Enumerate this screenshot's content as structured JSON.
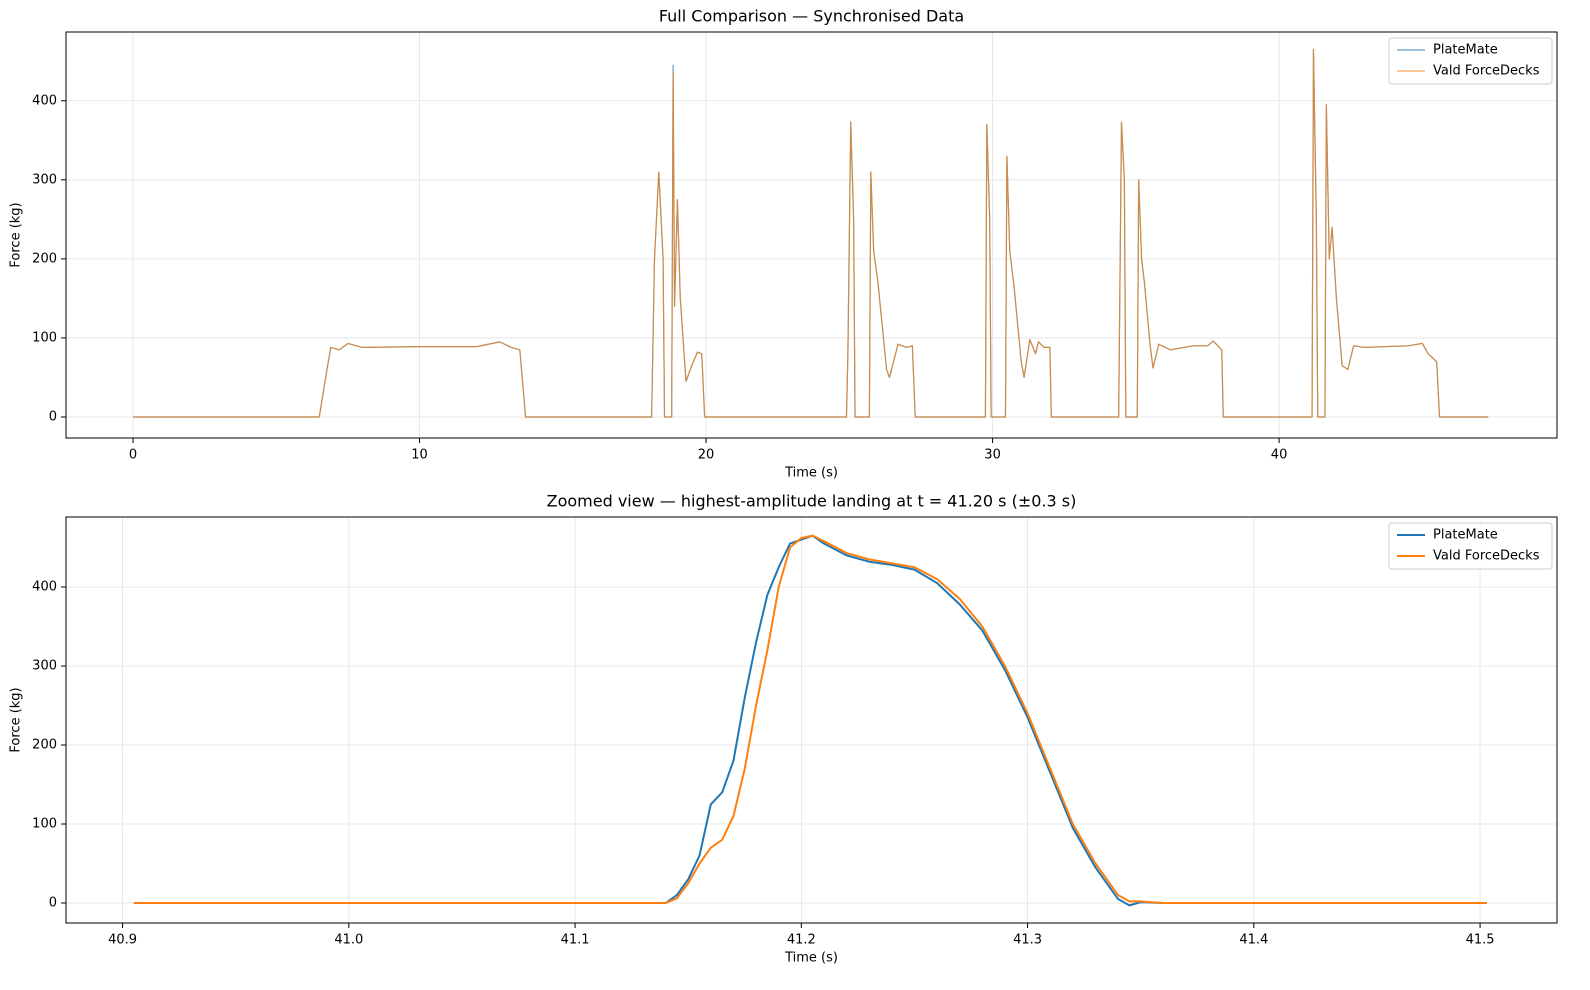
{
  "chart_data": [
    {
      "type": "line",
      "title": "Full Comparison — Synchronised Data",
      "x_label": "Time (s)",
      "y_label": "Force (kg)",
      "xlim": [
        -2.34,
        49.7
      ],
      "ylim": [
        -26.6,
        487
      ],
      "xticks": [
        0,
        10,
        20,
        30,
        40
      ],
      "yticks": [
        0,
        100,
        200,
        300,
        400
      ],
      "grid": true,
      "legend": "upper right",
      "line_width": 1.2,
      "x": [
        0,
        6.5,
        6.7,
        6.9,
        7.2,
        7.5,
        8,
        10,
        12,
        12.8,
        13.2,
        13.5,
        13.7,
        18.1,
        18.2,
        18.35,
        18.5,
        18.55,
        18.8,
        18.85,
        18.9,
        19.0,
        19.1,
        19.3,
        19.5,
        19.7,
        19.85,
        19.95,
        24.9,
        24.95,
        25.05,
        25.15,
        25.2,
        25.7,
        25.75,
        25.85,
        26.0,
        26.3,
        26.4,
        26.7,
        27,
        27.2,
        27.3,
        29.75,
        29.8,
        29.9,
        29.95,
        30.45,
        30.5,
        30.6,
        30.75,
        31.0,
        31.1,
        31.3,
        31.5,
        31.6,
        31.8,
        32,
        32.05,
        34.4,
        34.5,
        34.6,
        34.65,
        35.05,
        35.1,
        35.2,
        35.3,
        35.5,
        35.6,
        35.8,
        36.2,
        37,
        37.5,
        37.7,
        38,
        38.05,
        41.15,
        41.2,
        41.3,
        41.35,
        41.6,
        41.65,
        41.75,
        41.85,
        42,
        42.2,
        42.4,
        42.6,
        43,
        44.5,
        45,
        45.2,
        45.5,
        45.6,
        47.3
      ],
      "series": [
        {
          "name": "PlateMate",
          "color": "#1f77b4",
          "opacity": 0.7,
          "values": [
            0,
            0,
            45,
            88,
            85,
            93,
            88,
            89,
            89,
            95,
            88,
            85,
            0,
            0,
            200,
            310,
            200,
            0,
            0,
            445,
            140,
            275,
            150,
            45,
            65,
            82,
            80,
            0,
            0,
            80,
            373,
            250,
            0,
            0,
            310,
            210,
            170,
            60,
            50,
            92,
            88,
            90,
            0,
            0,
            370,
            250,
            0,
            0,
            330,
            210,
            165,
            70,
            50,
            98,
            80,
            95,
            88,
            88,
            0,
            0,
            373,
            300,
            0,
            0,
            300,
            200,
            170,
            90,
            62,
            92,
            85,
            90,
            90,
            96,
            85,
            0,
            0,
            465,
            250,
            0,
            0,
            395,
            200,
            240,
            150,
            65,
            60,
            90,
            88,
            90,
            93,
            80,
            70,
            0,
            0
          ]
        },
        {
          "name": "Vald ForceDecks",
          "color": "#ff7f0e",
          "opacity": 0.7,
          "values": [
            0,
            0,
            45,
            88,
            85,
            93,
            88,
            89,
            89,
            95,
            88,
            85,
            0,
            0,
            200,
            310,
            200,
            0,
            0,
            435,
            140,
            275,
            150,
            45,
            65,
            82,
            80,
            0,
            0,
            80,
            373,
            250,
            0,
            0,
            310,
            210,
            170,
            60,
            50,
            92,
            88,
            90,
            0,
            0,
            370,
            250,
            0,
            0,
            330,
            210,
            165,
            70,
            50,
            98,
            80,
            95,
            88,
            88,
            0,
            0,
            373,
            300,
            0,
            0,
            300,
            200,
            170,
            90,
            62,
            92,
            85,
            90,
            90,
            96,
            85,
            0,
            0,
            465,
            250,
            0,
            0,
            395,
            200,
            240,
            150,
            65,
            60,
            90,
            88,
            90,
            93,
            80,
            70,
            0,
            0
          ]
        }
      ]
    },
    {
      "type": "line",
      "title": "Zoomed view — highest-amplitude landing at t = 41.20 s (±0.3 s)",
      "x_label": "Time (s)",
      "y_label": "Force (kg)",
      "xlim": [
        40.875,
        41.534
      ],
      "ylim": [
        -25.3,
        488.6
      ],
      "xticks": [
        40.9,
        {
          "value": 41,
          "label": "41.0"
        },
        41.1,
        41.2,
        41.3,
        41.4,
        41.5
      ],
      "yticks": [
        0,
        100,
        200,
        300,
        400
      ],
      "grid": true,
      "legend": "upper right",
      "line_width": 2,
      "x": [
        40.905,
        41.0,
        41.14,
        41.145,
        41.15,
        41.155,
        41.16,
        41.165,
        41.17,
        41.175,
        41.18,
        41.185,
        41.19,
        41.195,
        41.2,
        41.205,
        41.21,
        41.22,
        41.23,
        41.24,
        41.25,
        41.26,
        41.27,
        41.28,
        41.29,
        41.3,
        41.31,
        41.32,
        41.33,
        41.34,
        41.345,
        41.35,
        41.36,
        41.4,
        41.503
      ],
      "series": [
        {
          "name": "PlateMate",
          "color": "#1f77b4",
          "opacity": 1,
          "values": [
            0,
            0,
            0,
            10,
            30,
            60,
            125,
            140,
            180,
            260,
            330,
            390,
            425,
            455,
            460,
            465,
            455,
            440,
            432,
            428,
            422,
            405,
            378,
            345,
            295,
            235,
            165,
            95,
            45,
            5,
            -3,
            1,
            0,
            0,
            0
          ]
        },
        {
          "name": "Vald ForceDecks",
          "color": "#ff7f0e",
          "opacity": 1,
          "values": [
            0,
            0,
            0,
            6,
            25,
            50,
            70,
            80,
            110,
            170,
            250,
            320,
            400,
            450,
            462,
            465,
            458,
            443,
            435,
            430,
            425,
            410,
            385,
            350,
            300,
            240,
            170,
            100,
            50,
            10,
            2,
            2,
            0,
            0,
            0
          ]
        }
      ]
    }
  ]
}
